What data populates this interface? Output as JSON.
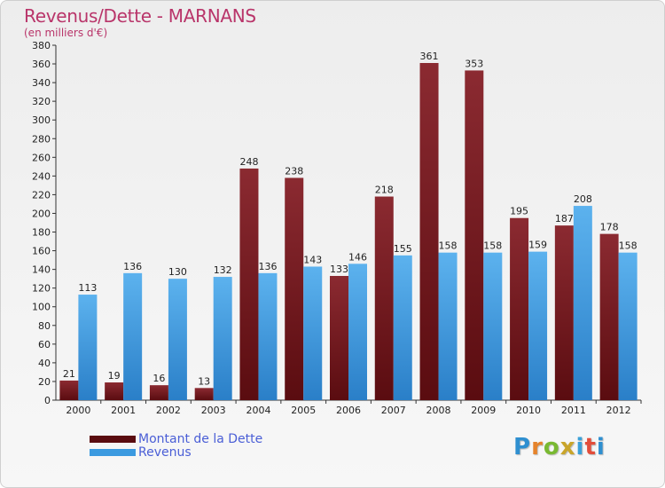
{
  "title": "Revenus/Dette - MARNANS",
  "subtitle": "(en milliers d'€)",
  "logo": "Proxiti",
  "colors": {
    "dette": "#7a1f24",
    "revenus": "#3b9ae0",
    "title": "#b9356a",
    "legend_text": "#4a5ed6"
  },
  "legend": [
    {
      "label": "Montant de la Dette",
      "color": "#5a0c10"
    },
    {
      "label": "Revenus",
      "color": "#3b9ae0"
    }
  ],
  "chart_data": {
    "type": "bar",
    "categories": [
      "2000",
      "2001",
      "2002",
      "2003",
      "2004",
      "2005",
      "2006",
      "2007",
      "2008",
      "2009",
      "2010",
      "2011",
      "2012"
    ],
    "series": [
      {
        "name": "Montant de la Dette",
        "values": [
          21,
          19,
          16,
          13,
          248,
          238,
          133,
          218,
          361,
          353,
          195,
          187,
          178
        ]
      },
      {
        "name": "Revenus",
        "values": [
          113,
          136,
          130,
          132,
          136,
          143,
          146,
          155,
          158,
          158,
          159,
          208,
          158
        ]
      }
    ],
    "ylim": [
      0,
      380
    ],
    "yticks": [
      0,
      20,
      40,
      60,
      80,
      100,
      120,
      140,
      160,
      180,
      200,
      220,
      240,
      260,
      280,
      300,
      320,
      340,
      360,
      380
    ],
    "grid": false,
    "legend_position": "bottom-left"
  }
}
